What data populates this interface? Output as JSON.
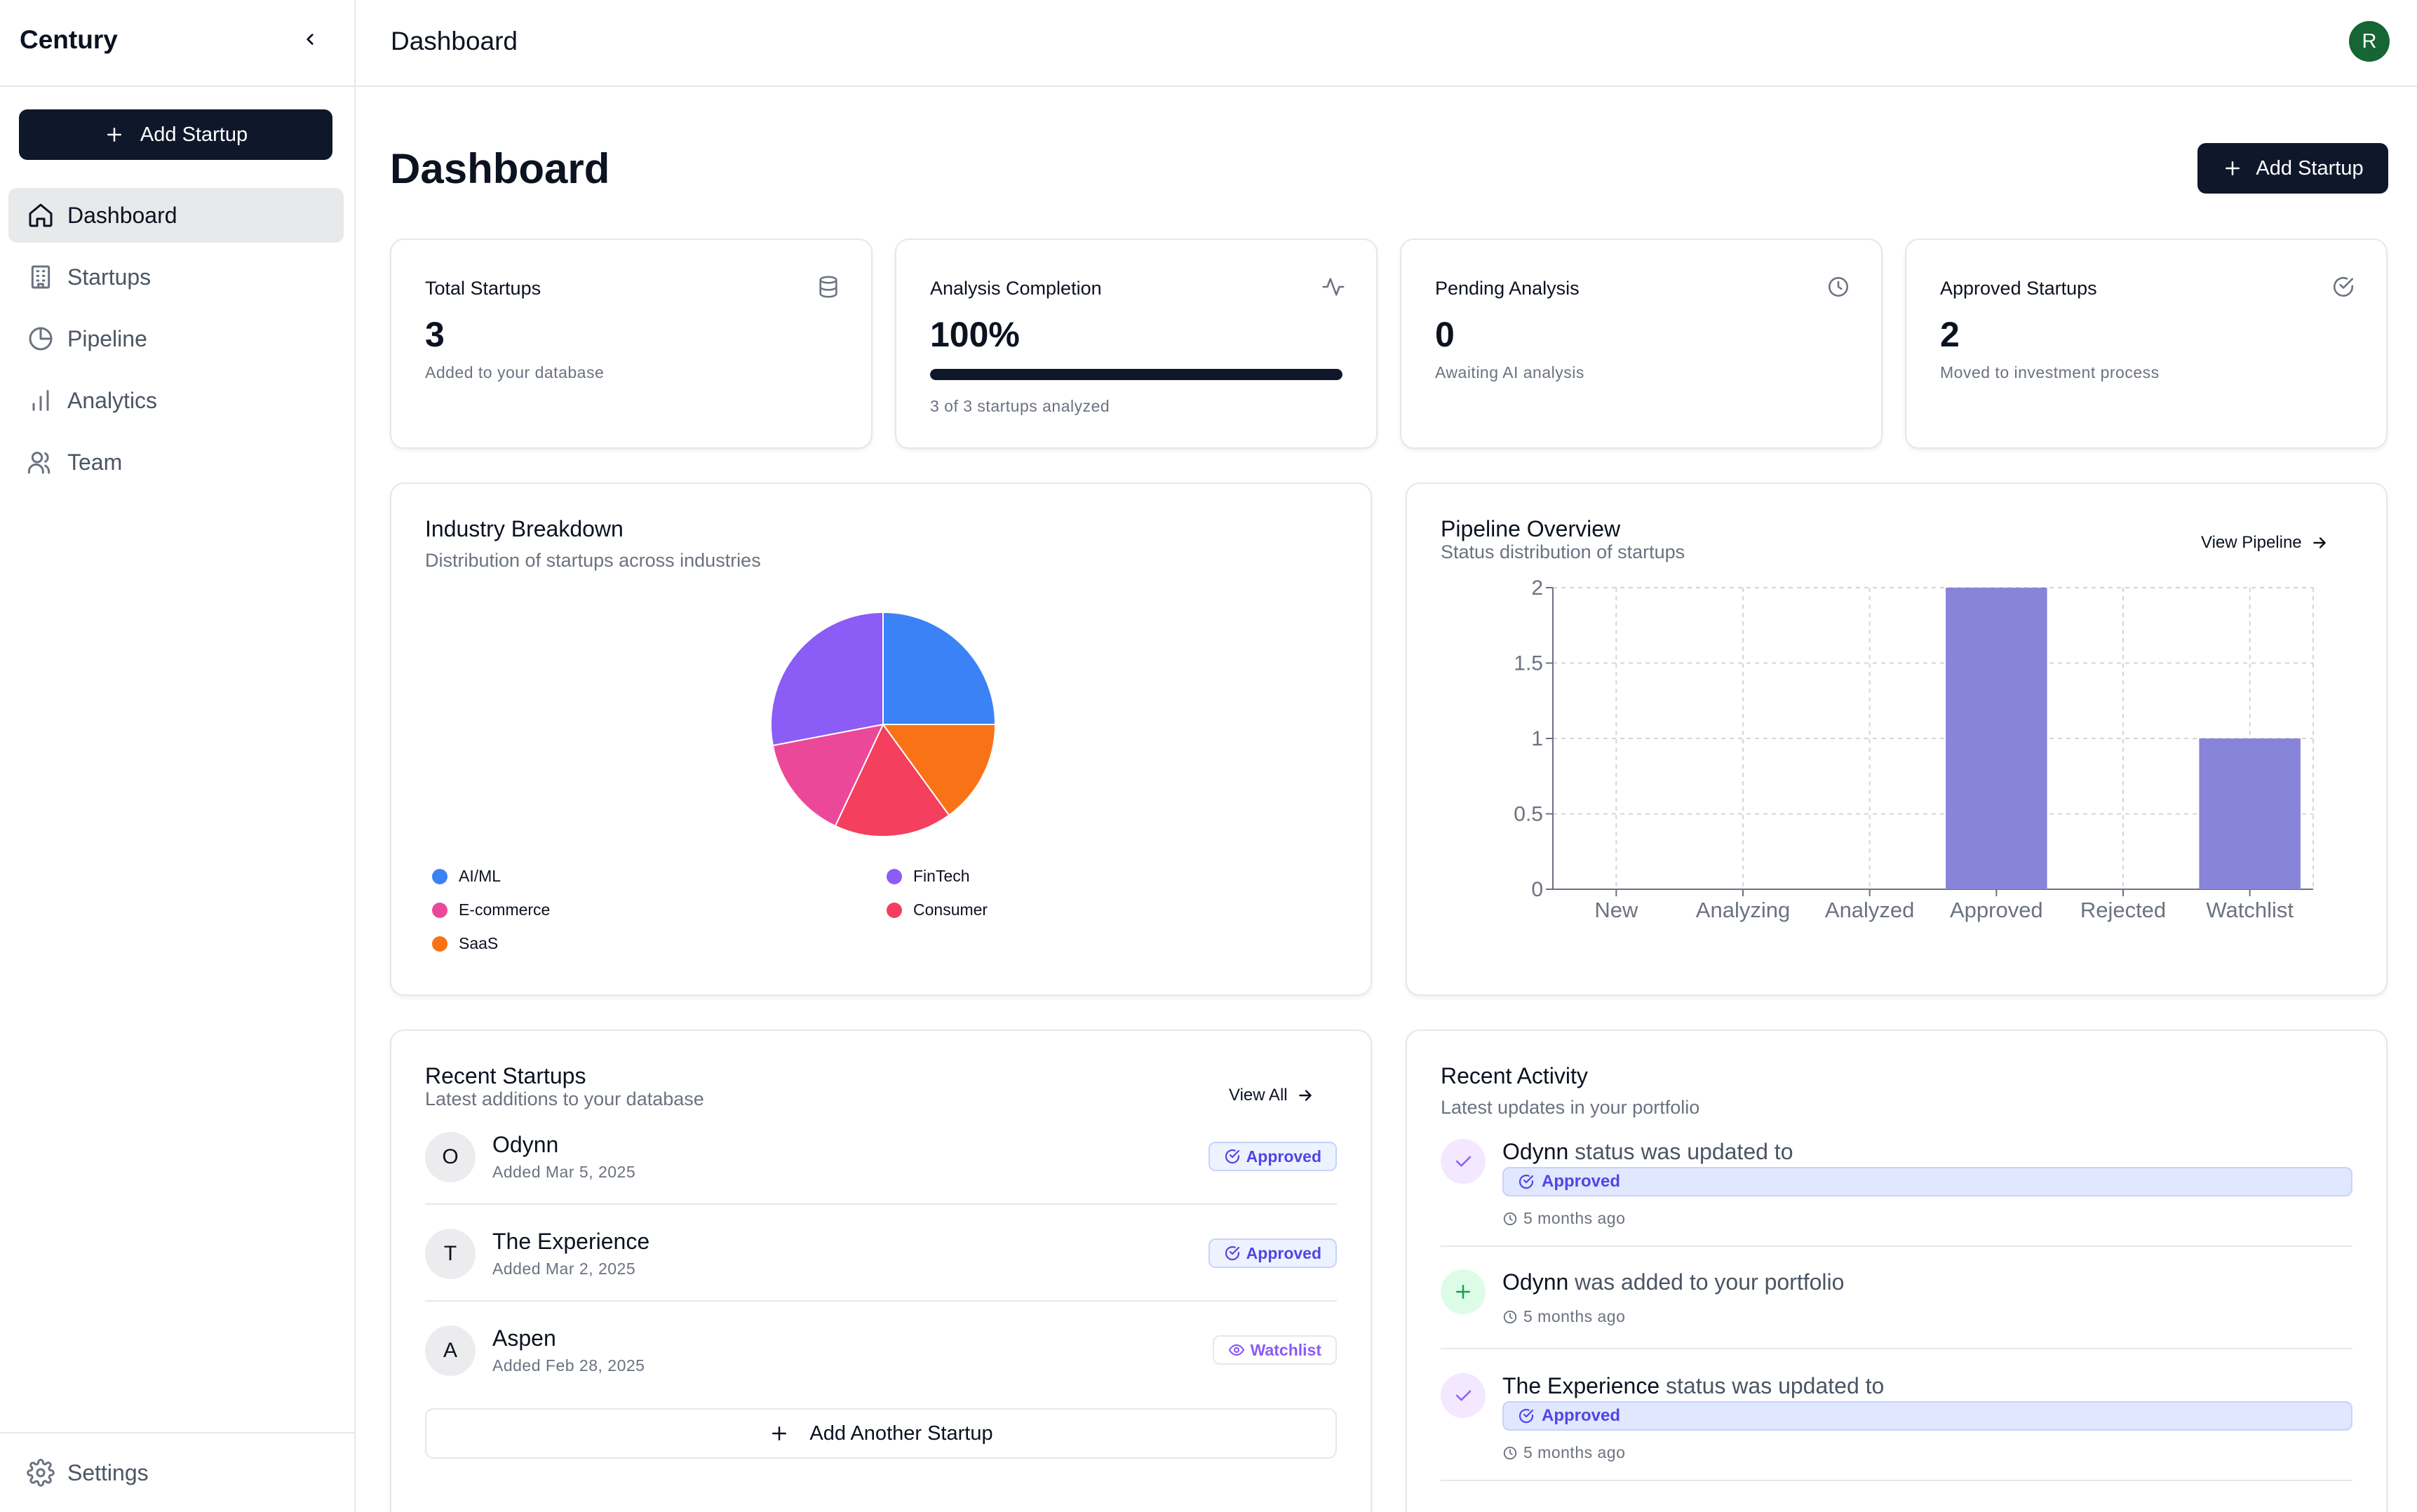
{
  "sidebar": {
    "brand": "Century",
    "add_button": "Add Startup",
    "nav": [
      {
        "label": "Dashboard",
        "icon": "home-icon",
        "active": true
      },
      {
        "label": "Startups",
        "icon": "building-icon",
        "active": false
      },
      {
        "label": "Pipeline",
        "icon": "pie-chart-icon",
        "active": false
      },
      {
        "label": "Analytics",
        "icon": "bar-chart-icon",
        "active": false
      },
      {
        "label": "Team",
        "icon": "users-icon",
        "active": false
      }
    ],
    "settings": "Settings"
  },
  "header": {
    "title": "Dashboard",
    "avatar_initial": "R"
  },
  "page": {
    "title": "Dashboard",
    "add_button": "Add Startup"
  },
  "stats": [
    {
      "title": "Total Startups",
      "value": "3",
      "sub": "Added to your database",
      "icon": "database-icon"
    },
    {
      "title": "Analysis Completion",
      "value": "100%",
      "progress": 1.0,
      "sub": "3 of 3 startups analyzed",
      "icon": "activity-icon"
    },
    {
      "title": "Pending Analysis",
      "value": "0",
      "sub": "Awaiting AI analysis",
      "icon": "clock-icon"
    },
    {
      "title": "Approved Startups",
      "value": "2",
      "sub": "Moved to investment process",
      "icon": "check-circle-icon"
    }
  ],
  "industry": {
    "title": "Industry Breakdown",
    "subtitle": "Distribution of startups across industries"
  },
  "pipeline": {
    "title": "Pipeline Overview",
    "subtitle": "Status distribution of startups",
    "link": "View Pipeline"
  },
  "chart_data": [
    {
      "type": "pie",
      "title": "Industry Breakdown",
      "slices": [
        {
          "label": "AI/ML",
          "value": 25,
          "color": "#3b82f6"
        },
        {
          "label": "SaaS",
          "value": 15,
          "color": "#f97316"
        },
        {
          "label": "Consumer",
          "value": 17,
          "color": "#f43f5e"
        },
        {
          "label": "E-commerce",
          "value": 15,
          "color": "#ec4899"
        },
        {
          "label": "FinTech",
          "value": 28,
          "color": "#8b5cf6"
        }
      ],
      "legend": [
        {
          "label": "AI/ML",
          "color": "#3b82f6"
        },
        {
          "label": "FinTech",
          "color": "#8b5cf6"
        },
        {
          "label": "E-commerce",
          "color": "#ec4899"
        },
        {
          "label": "Consumer",
          "color": "#f43f5e"
        },
        {
          "label": "SaaS",
          "color": "#f97316"
        }
      ]
    },
    {
      "type": "bar",
      "title": "Pipeline Overview",
      "categories": [
        "New",
        "Analyzing",
        "Analyzed",
        "Approved",
        "Rejected",
        "Watchlist"
      ],
      "values": [
        0,
        0,
        0,
        2,
        0,
        1
      ],
      "yticks": [
        "0",
        "0.5",
        "1",
        "1.5",
        "2"
      ],
      "ylim": [
        0,
        2
      ],
      "grid": true,
      "color": "#8884d8"
    }
  ],
  "recent_startups": {
    "title": "Recent Startups",
    "subtitle": "Latest additions to your database",
    "link": "View All",
    "items": [
      {
        "initial": "O",
        "name": "Odynn",
        "date": "Added Mar 5, 2025",
        "status": "Approved"
      },
      {
        "initial": "T",
        "name": "The Experience",
        "date": "Added Mar 2, 2025",
        "status": "Approved"
      },
      {
        "initial": "A",
        "name": "Aspen",
        "date": "Added Feb 28, 2025",
        "status": "Watchlist"
      }
    ],
    "add_another": "Add Another Startup"
  },
  "activity": {
    "title": "Recent Activity",
    "subtitle": "Latest updates in your portfolio",
    "items": [
      {
        "name": "Odynn",
        "text": "status was updated to",
        "badge": "Approved",
        "time": "5 months ago"
      },
      {
        "name": "Odynn",
        "text": "was added to your portfolio",
        "time": "5 months ago"
      },
      {
        "name": "The Experience",
        "text": "status was updated to",
        "badge": "Approved",
        "time": "5 months ago"
      }
    ]
  }
}
